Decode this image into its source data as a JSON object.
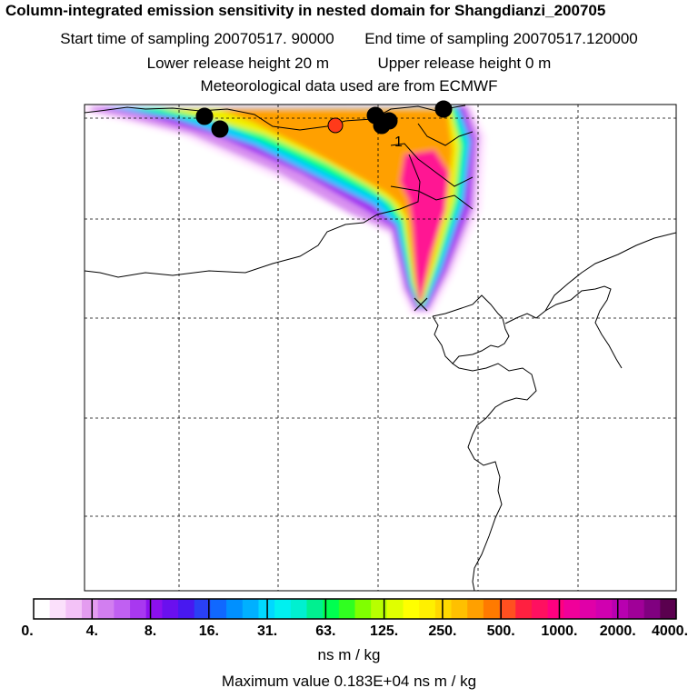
{
  "header": {
    "title": "Column-integrated emission sensitivity in nested domain for Shangdianzi_200705",
    "start_label": "Start time of sampling 20070517. 90000",
    "end_label": "End time of sampling 20070517.120000",
    "lower_label": "Lower release height   20 m",
    "upper_label": "Upper release height    0 m",
    "met_label": "Meteorological data used are from ECMWF"
  },
  "map": {
    "contour_label": "1",
    "colors": {
      "level_1": "#ffe6ff",
      "level_2": "#d890f0",
      "level_3": "#a028f0",
      "level_4": "#00c8ff",
      "level_5": "#00ff80",
      "level_6": "#f0f000",
      "level_7": "#ffa000",
      "level_8": "#ff1493",
      "site_marker": "#ff3a1a",
      "dot": "#000000"
    }
  },
  "colorbar": {
    "colors": [
      "#ffffff",
      "#fbe0fb",
      "#f3c2f7",
      "#e49cf0",
      "#d27ef0",
      "#c060f2",
      "#a838f0",
      "#8c10ee",
      "#6a10ee",
      "#4818f0",
      "#2a40f4",
      "#1068ff",
      "#0090ff",
      "#00b0ff",
      "#00d8ff",
      "#00f0f0",
      "#00f0d0",
      "#00f090",
      "#00ff50",
      "#30ff20",
      "#80ff00",
      "#b8ff00",
      "#e0ff00",
      "#ffff00",
      "#fff000",
      "#ffd800",
      "#ffc000",
      "#ffa000",
      "#ff7a00",
      "#ff5020",
      "#ff2040",
      "#ff1060",
      "#ff0080",
      "#f0009a",
      "#e000a8",
      "#d000b0",
      "#b800b0",
      "#a00098",
      "#800080",
      "#5a004e"
    ],
    "tick_labels": [
      "0.",
      "4.",
      "8.",
      "16.",
      "31.",
      "63.",
      "125.",
      "250.",
      "500.",
      "1000.",
      "2000.",
      "4000."
    ],
    "units": "ns m / kg"
  },
  "footer": {
    "max_value": "Maximum value  0.183E+04 ns m / kg"
  }
}
